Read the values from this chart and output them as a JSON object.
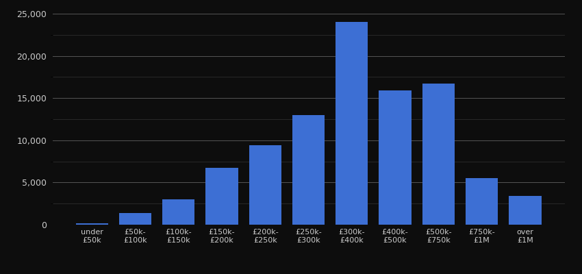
{
  "categories": [
    "under\n£50k",
    "£50k-\n£100k",
    "£100k-\n£150k",
    "£150k-\n£200k",
    "£200k-\n£250k",
    "£250k-\n£300k",
    "£300k-\n£400k",
    "£400k-\n£500k",
    "£500k-\n£750k",
    "£750k-\n£1M",
    "over\n£1M"
  ],
  "values": [
    200,
    1400,
    3000,
    6700,
    9400,
    13000,
    24000,
    15900,
    16700,
    5500,
    3400
  ],
  "bar_color": "#3d6fd4",
  "background_color": "#0d0d0d",
  "text_color": "#cccccc",
  "major_grid_color": "#555555",
  "minor_grid_color": "#333333",
  "ylim": [
    0,
    25000
  ],
  "yticks": [
    0,
    5000,
    10000,
    15000,
    20000,
    25000
  ],
  "bar_width": 0.75
}
